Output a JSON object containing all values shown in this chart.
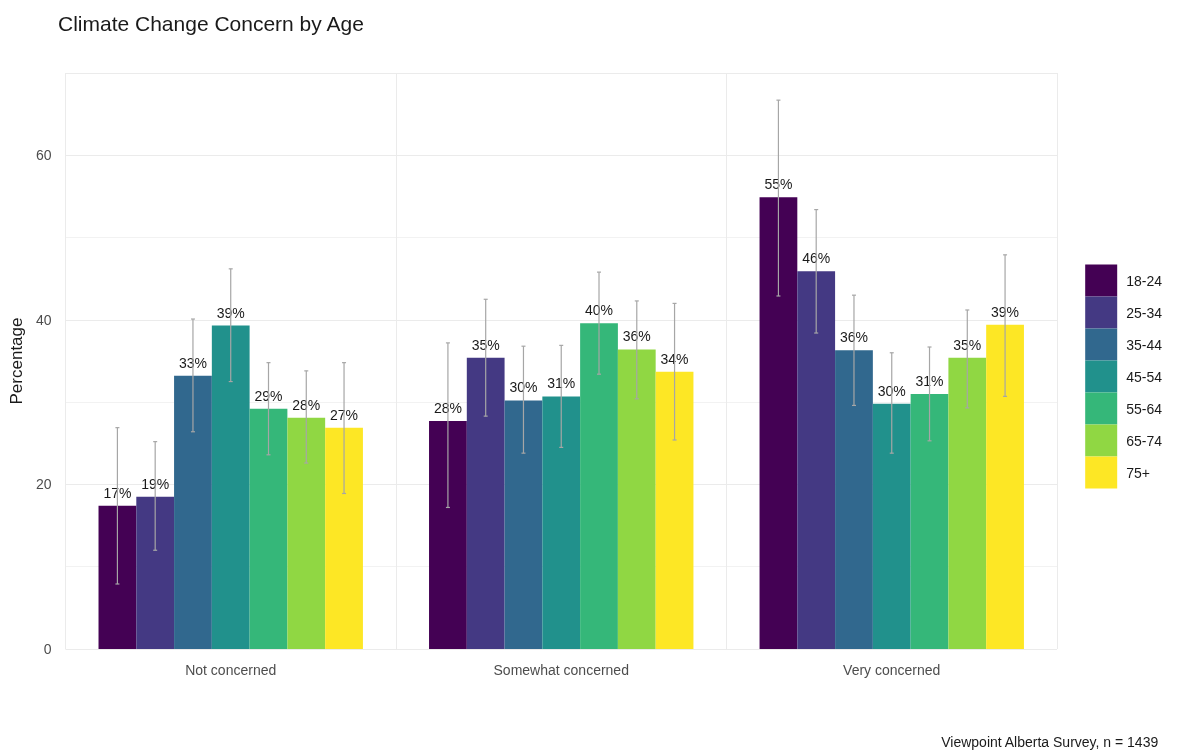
{
  "chart_data": {
    "type": "bar",
    "title": "Climate Change Concern by Age",
    "ylabel": "Percentage",
    "categories": [
      "Not concerned",
      "Somewhat concerned",
      "Very concerned"
    ],
    "series": [
      {
        "name": "18-24",
        "color": "#440154",
        "values": [
          17.4,
          27.7,
          54.9
        ],
        "errors": [
          [
            7.9,
            26.9
          ],
          [
            17.2,
            37.2
          ],
          [
            42.9,
            66.7
          ]
        ],
        "value_labels": [
          "17%",
          "28%",
          "55%"
        ]
      },
      {
        "name": "25-34",
        "color": "#443983",
        "values": [
          18.5,
          35.4,
          45.9
        ],
        "errors": [
          [
            12.0,
            25.2
          ],
          [
            28.3,
            42.5
          ],
          [
            38.4,
            53.4
          ]
        ],
        "value_labels": [
          "19%",
          "35%",
          "46%"
        ]
      },
      {
        "name": "35-44",
        "color": "#31688e",
        "values": [
          33.2,
          30.2,
          36.3
        ],
        "errors": [
          [
            26.4,
            40.1
          ],
          [
            23.8,
            36.8
          ],
          [
            29.6,
            43.0
          ]
        ],
        "value_labels": [
          "33%",
          "30%",
          "36%"
        ]
      },
      {
        "name": "45-54",
        "color": "#21918c",
        "values": [
          39.3,
          30.7,
          29.8
        ],
        "errors": [
          [
            32.5,
            46.2
          ],
          [
            24.5,
            36.9
          ],
          [
            23.8,
            36.0
          ]
        ],
        "value_labels": [
          "39%",
          "31%",
          "30%"
        ]
      },
      {
        "name": "55-64",
        "color": "#35b779",
        "values": [
          29.2,
          39.6,
          31.0
        ],
        "errors": [
          [
            23.6,
            34.8
          ],
          [
            33.4,
            45.8
          ],
          [
            25.3,
            36.7
          ]
        ],
        "value_labels": [
          "29%",
          "40%",
          "31%"
        ]
      },
      {
        "name": "65-74",
        "color": "#90d743",
        "values": [
          28.1,
          36.4,
          35.4
        ],
        "errors": [
          [
            22.6,
            33.8
          ],
          [
            30.4,
            42.3
          ],
          [
            29.3,
            41.2
          ]
        ],
        "value_labels": [
          "28%",
          "36%",
          "35%"
        ]
      },
      {
        "name": "75+",
        "color": "#fde725",
        "values": [
          26.9,
          33.7,
          39.4
        ],
        "errors": [
          [
            18.9,
            34.8
          ],
          [
            25.4,
            42.0
          ],
          [
            30.7,
            47.9
          ]
        ],
        "value_labels": [
          "27%",
          "34%",
          "39%"
        ]
      }
    ],
    "ylim": [
      0,
      70
    ],
    "yticks": [
      0,
      20,
      40,
      60
    ],
    "grid": true,
    "legend": "right",
    "annotations": [
      "Viewpoint Alberta Survey, n = 1439"
    ]
  }
}
